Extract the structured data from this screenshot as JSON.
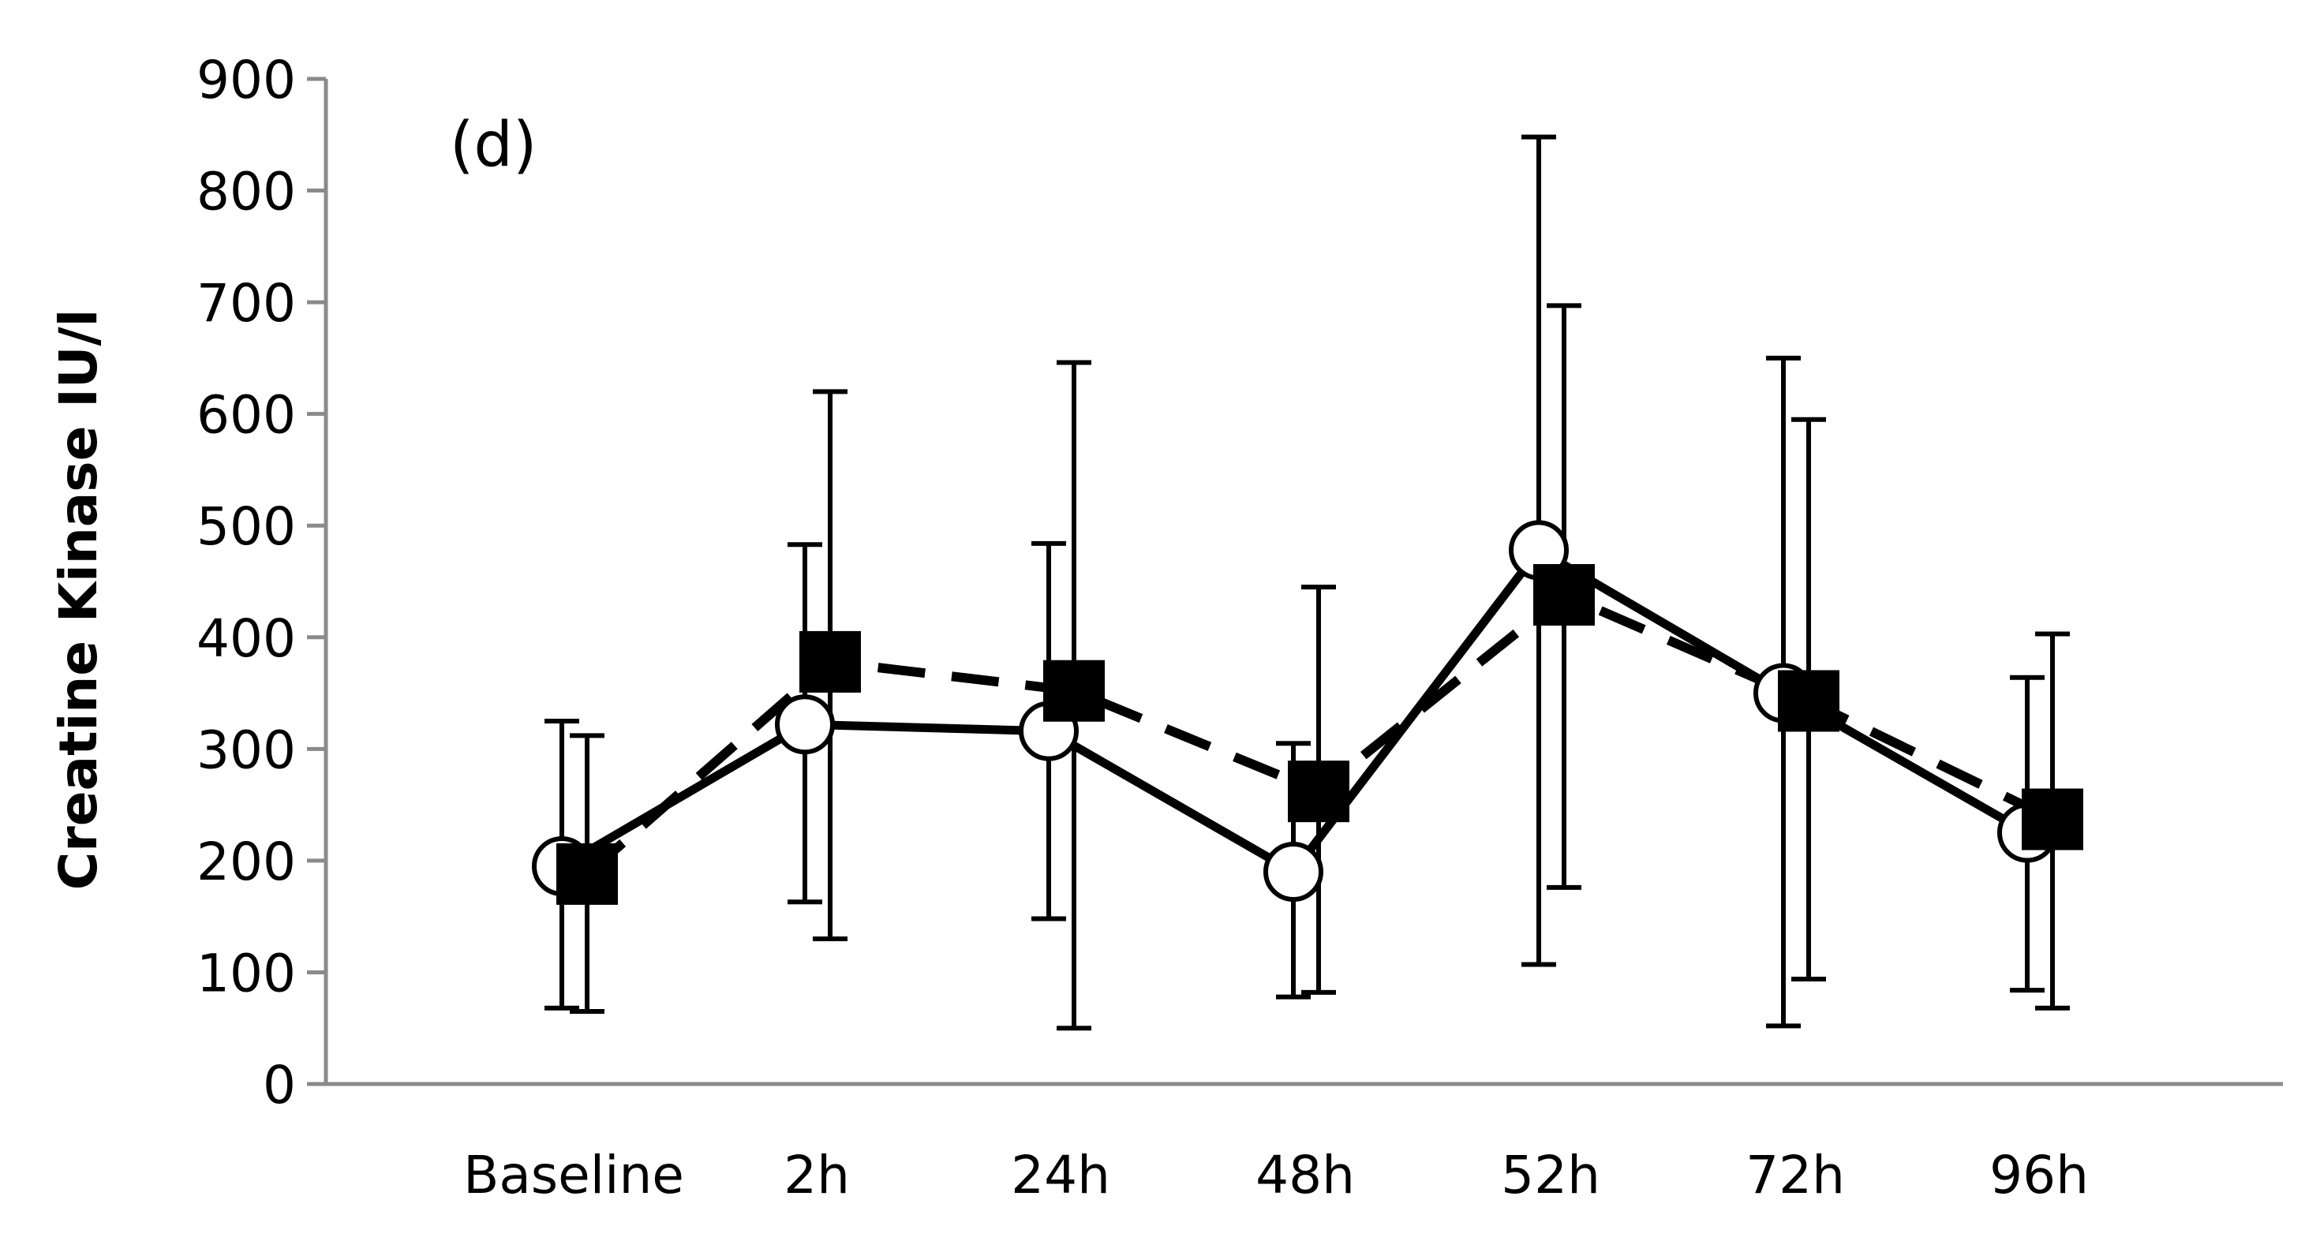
{
  "chart_data": {
    "type": "line",
    "panel_label": "(d)",
    "ylabel": "Creatine Kinase IU/l",
    "xlabel": "",
    "ylim": [
      0,
      900
    ],
    "yticks": [
      0,
      100,
      200,
      300,
      400,
      500,
      600,
      700,
      800,
      900
    ],
    "ytick_labels": [
      "0",
      "100",
      "200",
      "300",
      "400",
      "500",
      "600",
      "700",
      "800",
      "900"
    ],
    "categories": [
      "Baseline",
      "2h",
      "24h",
      "48h",
      "52h",
      "72h",
      "96h"
    ],
    "grid": false,
    "series": [
      {
        "name": "open-circle-solid",
        "marker": "circle",
        "marker_fill": "#ffffff",
        "line_style": "solid",
        "color": "#000000",
        "values": [
          195,
          322,
          316,
          190,
          478,
          350,
          225
        ],
        "err_low": [
          68,
          163,
          148,
          78,
          107,
          52,
          84
        ],
        "err_high": [
          325,
          483,
          484,
          305,
          848,
          650,
          364
        ]
      },
      {
        "name": "filled-square-dashed",
        "marker": "square",
        "marker_fill": "#000000",
        "line_style": "dashed",
        "color": "#000000",
        "values": [
          188,
          378,
          352,
          262,
          438,
          343,
          237
        ],
        "err_low": [
          65,
          130,
          50,
          82,
          176,
          94,
          68
        ],
        "err_high": [
          312,
          620,
          646,
          445,
          697,
          595,
          403
        ]
      }
    ]
  }
}
